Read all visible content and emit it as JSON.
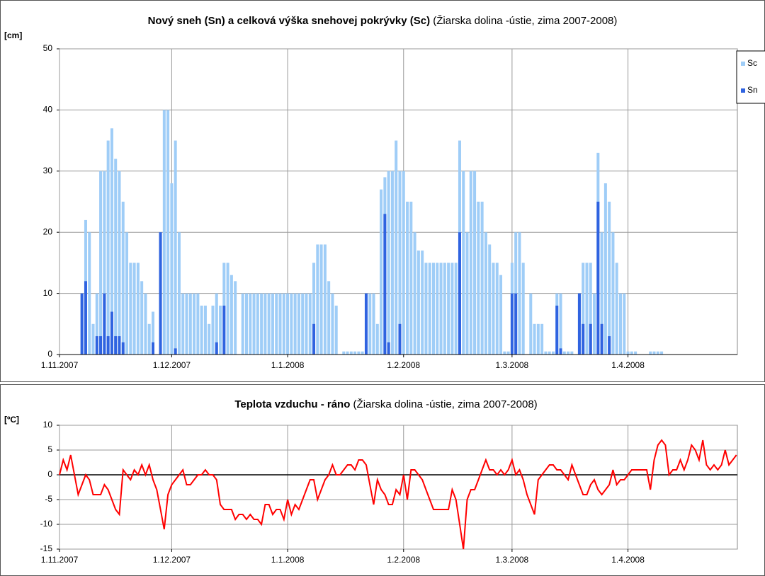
{
  "chart_data": [
    {
      "type": "bar",
      "title": "Nový sneh (Sn) a celková výška snehovej pokrývky (Sc)",
      "title_note": " (Žiarska dolina -ústie, zima 2007-2008)",
      "ylabel": "[cm]",
      "categories": [
        "1.11.2007",
        null,
        null,
        null,
        null,
        null,
        null,
        null,
        null,
        null,
        null,
        null,
        null,
        null,
        null,
        null,
        null,
        null,
        null,
        null,
        null,
        null,
        null,
        null,
        null,
        null,
        null,
        null,
        null,
        null,
        "1.12.2007",
        null,
        null,
        null,
        null,
        null,
        null,
        null,
        null,
        null,
        null,
        null,
        null,
        null,
        null,
        null,
        null,
        null,
        null,
        null,
        null,
        null,
        null,
        null,
        null,
        null,
        null,
        null,
        null,
        null,
        null,
        "1.1.2008",
        null,
        null,
        null,
        null,
        null,
        null,
        null,
        null,
        null,
        null,
        null,
        null,
        null,
        null,
        null,
        null,
        null,
        null,
        null,
        null,
        null,
        null,
        null,
        null,
        null,
        null,
        null,
        null,
        null,
        null,
        "1.2.2008",
        null,
        null,
        null,
        null,
        null,
        null,
        null,
        null,
        null,
        null,
        null,
        null,
        null,
        null,
        null,
        null,
        null,
        null,
        null,
        null,
        null,
        null,
        null,
        null,
        null,
        null,
        null,
        null,
        "1.3.2008",
        null,
        null,
        null,
        null,
        null,
        null,
        null,
        null,
        null,
        null,
        null,
        null,
        null,
        null,
        null,
        null,
        null,
        null,
        null,
        null,
        null,
        null,
        null,
        null,
        null,
        null,
        null,
        null,
        null,
        null,
        "1.4.2008",
        null,
        null,
        null,
        null,
        null,
        null,
        null,
        null,
        null,
        null,
        null,
        null,
        null,
        null,
        null,
        null,
        null,
        null,
        null,
        null,
        null,
        null,
        null,
        null,
        null,
        null,
        null,
        null,
        null
      ],
      "series": [
        {
          "name": "Sc",
          "color": "#9fcdf7",
          "values": [
            0,
            0,
            0,
            0,
            0,
            0,
            10,
            22,
            20,
            5,
            10,
            30,
            30,
            35,
            37,
            32,
            30,
            25,
            20,
            15,
            15,
            15,
            12,
            10,
            5,
            7,
            0,
            20,
            40,
            40,
            28,
            35,
            20,
            10,
            10,
            10,
            10,
            10,
            8,
            8,
            5,
            8,
            10,
            8,
            15,
            15,
            13,
            12,
            0,
            10,
            10,
            10,
            10,
            10,
            10,
            10,
            10,
            10,
            10,
            10,
            10,
            10,
            10,
            10,
            10,
            10,
            10,
            10,
            15,
            18,
            18,
            18,
            12,
            10,
            8,
            0,
            0.5,
            0.5,
            0.5,
            0.5,
            0.5,
            0.5,
            10,
            10,
            10,
            5,
            27,
            29,
            30,
            30,
            35,
            30,
            30,
            25,
            25,
            20,
            17,
            17,
            15,
            15,
            15,
            15,
            15,
            15,
            15,
            15,
            15,
            35,
            30,
            20,
            30,
            30,
            25,
            25,
            20,
            18,
            15,
            15,
            13,
            0.5,
            0.5,
            15,
            20,
            20,
            15,
            0,
            10,
            5,
            5,
            5,
            0.5,
            0.5,
            0.5,
            10,
            10,
            0.5,
            0.5,
            0.5,
            0,
            10,
            15,
            15,
            15,
            10,
            33,
            20,
            28,
            25,
            20,
            15,
            10,
            10,
            0.5,
            0.5,
            0.5,
            0,
            0,
            0,
            0.5,
            0.5,
            0.5,
            0.5,
            0,
            0,
            0,
            0,
            0,
            0,
            0,
            0,
            0,
            0,
            0,
            0,
            0,
            0,
            0,
            0,
            0,
            0,
            0,
            0
          ]
        },
        {
          "name": "Sn",
          "color": "#2f63e0",
          "values": [
            0,
            0,
            0,
            0,
            0,
            0,
            10,
            12,
            0,
            0,
            3,
            3,
            10,
            3,
            7,
            3,
            3,
            2,
            0,
            0,
            0,
            0,
            0,
            0,
            0,
            2,
            0,
            20,
            0,
            0,
            0,
            1,
            0,
            0,
            0,
            0,
            0,
            0,
            0,
            0,
            0,
            0,
            2,
            0,
            8,
            0,
            0,
            0,
            0,
            0,
            0,
            0,
            0,
            0,
            0,
            0,
            0,
            0,
            0,
            0,
            0,
            0,
            0,
            0,
            0,
            0,
            0,
            0,
            5,
            0,
            0,
            0,
            0,
            0,
            0,
            0,
            0,
            0,
            0,
            0,
            0,
            0,
            10,
            0,
            0,
            0,
            0,
            23,
            2,
            0,
            0,
            5,
            0,
            0,
            0,
            0,
            0,
            0,
            0,
            0,
            0,
            0,
            0,
            0,
            0,
            0,
            0,
            20,
            0,
            0,
            0,
            0,
            0,
            0,
            0,
            0,
            0,
            0,
            0,
            0,
            0,
            10,
            10,
            0,
            0,
            0,
            0,
            0,
            0,
            0,
            0,
            0,
            0,
            8,
            1,
            0,
            0,
            0,
            0,
            10,
            5,
            0,
            5,
            0,
            25,
            5,
            0,
            3,
            0,
            0,
            0,
            0,
            0,
            0,
            0,
            0,
            0,
            0,
            0,
            0,
            0,
            0,
            0,
            0,
            0,
            0,
            0,
            0,
            0,
            0,
            0,
            0,
            0,
            0,
            0,
            0,
            0,
            0,
            0,
            0,
            0,
            0
          ]
        }
      ],
      "ylim": [
        0,
        50
      ],
      "yticks": [
        0,
        10,
        20,
        30,
        40,
        50
      ],
      "grid": true,
      "legend": "right"
    },
    {
      "type": "line",
      "title": "Teplota vzduchu - ráno",
      "title_note": " (Žiarska dolina -ústie, zima 2007-2008)",
      "ylabel": "[ºC]",
      "categories": [
        "1.11.2007",
        null,
        null,
        null,
        null,
        null,
        null,
        null,
        null,
        null,
        null,
        null,
        null,
        null,
        null,
        null,
        null,
        null,
        null,
        null,
        null,
        null,
        null,
        null,
        null,
        null,
        null,
        null,
        null,
        null,
        "1.12.2007",
        null,
        null,
        null,
        null,
        null,
        null,
        null,
        null,
        null,
        null,
        null,
        null,
        null,
        null,
        null,
        null,
        null,
        null,
        null,
        null,
        null,
        null,
        null,
        null,
        null,
        null,
        null,
        null,
        null,
        null,
        "1.1.2008",
        null,
        null,
        null,
        null,
        null,
        null,
        null,
        null,
        null,
        null,
        null,
        null,
        null,
        null,
        null,
        null,
        null,
        null,
        null,
        null,
        null,
        null,
        null,
        null,
        null,
        null,
        null,
        null,
        null,
        null,
        "1.2.2008",
        null,
        null,
        null,
        null,
        null,
        null,
        null,
        null,
        null,
        null,
        null,
        null,
        null,
        null,
        null,
        null,
        null,
        null,
        null,
        null,
        null,
        null,
        null,
        null,
        null,
        null,
        null,
        null,
        "1.3.2008",
        null,
        null,
        null,
        null,
        null,
        null,
        null,
        null,
        null,
        null,
        null,
        null,
        null,
        null,
        null,
        null,
        null,
        null,
        null,
        null,
        null,
        null,
        null,
        null,
        null,
        null,
        null,
        null,
        null,
        null,
        "1.4.2008",
        null,
        null,
        null,
        null,
        null,
        null,
        null,
        null,
        null,
        null,
        null,
        null,
        null,
        null,
        null,
        null,
        null,
        null,
        null,
        null,
        null,
        null,
        null,
        null,
        null,
        null,
        null,
        null,
        null
      ],
      "color": "#ff0000",
      "values": [
        0,
        3,
        1,
        4,
        0,
        -4,
        -2,
        0,
        -1,
        -4,
        -4,
        -4,
        -2,
        -3,
        -5,
        -7,
        -8,
        1,
        0,
        -1,
        1,
        0,
        2,
        0,
        2,
        -1,
        -3,
        -7,
        -11,
        -4,
        -2,
        -1,
        0,
        1,
        -2,
        -2,
        -1,
        0,
        0,
        1,
        0,
        0,
        -1,
        -6,
        -7,
        -7,
        -7,
        -9,
        -8,
        -8,
        -9,
        -8,
        -9,
        -9,
        -10,
        -6,
        -6,
        -8,
        -7,
        -7,
        -9,
        -5,
        -8,
        -6,
        -7,
        -5,
        -3,
        -1,
        -1,
        -5,
        -3,
        -1,
        0,
        2,
        0,
        0,
        1,
        2,
        2,
        1,
        3,
        3,
        2,
        -2,
        -6,
        -1,
        -3,
        -4,
        -6,
        -6,
        -3,
        -4,
        0,
        -5,
        1,
        1,
        0,
        -1,
        -3,
        -5,
        -7,
        -7,
        -7,
        -7,
        -7,
        -3,
        -5,
        -10,
        -15,
        -5,
        -3,
        -3,
        -1,
        1,
        3,
        1,
        1,
        0,
        1,
        0,
        1,
        3,
        0,
        1,
        -1,
        -4,
        -6,
        -8,
        -1,
        0,
        1,
        2,
        2,
        1,
        1,
        0,
        -1,
        2,
        0,
        -2,
        -4,
        -4,
        -2,
        -1,
        -3,
        -4,
        -3,
        -2,
        1,
        -2,
        -1,
        -1,
        0,
        1,
        1,
        1,
        1,
        1,
        -3,
        3,
        6,
        7,
        6,
        0,
        1,
        1,
        3,
        1,
        3,
        6,
        5,
        3,
        7,
        2,
        1,
        2,
        1,
        2,
        5,
        2,
        3,
        4
      ],
      "ylim": [
        -15,
        10
      ],
      "yticks": [
        -15,
        -10,
        -5,
        0,
        5,
        10
      ],
      "grid": true
    }
  ]
}
